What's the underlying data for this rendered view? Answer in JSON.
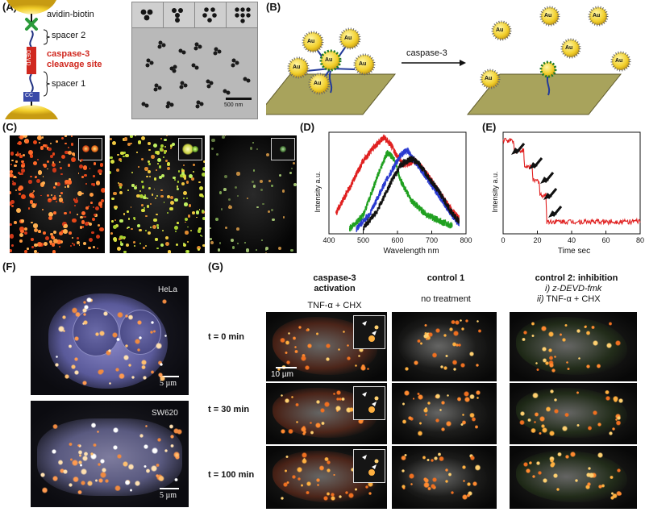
{
  "panel_letters": [
    "(A)",
    "(B)",
    "(C)",
    "(D)",
    "(E)",
    "(F)",
    "(G)"
  ],
  "panelA": {
    "labels": {
      "avidin_biotin": "avidin-biotin",
      "spacer2": "spacer 2",
      "caspase_line1": "caspase-3",
      "caspase_line2": "cleavage site",
      "spacer1": "spacer 1",
      "devd": "DEVD",
      "cc": "CC"
    },
    "scale_bar": "500 nm",
    "colors": {
      "cleavage": "#d0281f",
      "linker": "#3a57a8",
      "gold": "#f2cf2a"
    }
  },
  "panelB": {
    "arrow_label": "caspase-3",
    "np_label": "Au"
  },
  "panelD": {
    "chart_data": {
      "type": "line",
      "xlabel": "Wavelength nm",
      "ylabel": "Intensity a.u.",
      "xlim": [
        400,
        800
      ],
      "x_ticks": [
        400,
        500,
        600,
        700,
        800
      ],
      "series": [
        {
          "color": "#e02020",
          "x": [
            420,
            460,
            500,
            530,
            560,
            580,
            600,
            620,
            650,
            680,
            720,
            760,
            780
          ],
          "values": [
            0.2,
            0.45,
            0.72,
            0.85,
            0.95,
            0.88,
            0.76,
            0.68,
            0.72,
            0.62,
            0.42,
            0.22,
            0.15
          ]
        },
        {
          "color": "#20a020",
          "x": [
            460,
            500,
            540,
            570,
            590,
            610,
            640,
            680,
            720,
            760
          ],
          "values": [
            0.05,
            0.18,
            0.55,
            0.8,
            0.74,
            0.52,
            0.33,
            0.2,
            0.13,
            0.08
          ]
        },
        {
          "color": "#2a3ad0",
          "x": [
            480,
            520,
            560,
            590,
            610,
            630,
            650,
            680,
            720,
            760,
            780
          ],
          "values": [
            0.05,
            0.2,
            0.48,
            0.66,
            0.78,
            0.82,
            0.72,
            0.58,
            0.38,
            0.18,
            0.1
          ]
        },
        {
          "color": "#111111",
          "x": [
            500,
            540,
            580,
            610,
            640,
            660,
            690,
            720,
            760,
            780
          ],
          "values": [
            0.06,
            0.22,
            0.5,
            0.68,
            0.74,
            0.7,
            0.56,
            0.42,
            0.2,
            0.12
          ]
        }
      ]
    }
  },
  "panelE": {
    "chart_data": {
      "type": "line",
      "xlabel": "Time sec",
      "ylabel": "Intensity a.u.",
      "xlim": [
        0,
        80
      ],
      "x_ticks": [
        0,
        20,
        40,
        60,
        80
      ],
      "series": [
        {
          "color": "#e02020",
          "x": [
            0,
            6,
            6.5,
            12,
            12.5,
            17,
            17.5,
            21,
            21.5,
            25,
            25.5,
            80
          ],
          "values": [
            0.92,
            0.92,
            0.82,
            0.82,
            0.66,
            0.66,
            0.52,
            0.52,
            0.38,
            0.38,
            0.12,
            0.12
          ]
        }
      ]
    }
  },
  "panelF": {
    "cell1_label": "HeLa",
    "cell2_label": "SW620",
    "scale_bar": "5 µm"
  },
  "panelG": {
    "col1_title_line1": "caspase-3",
    "col1_title_line2": "activation",
    "col1_treatment": "TNF-α + CHX",
    "col2_title": "control 1",
    "col2_treatment": "no treatment",
    "col3_title": "control 2: inhibition",
    "col3_treat1_prefix": "i)",
    "col3_treat1": "z-DEVD-fmk",
    "col3_treat2_prefix": "ii)",
    "col3_treat2": "TNF-α + CHX",
    "times": [
      "t = 0 min",
      "t = 30 min",
      "t = 100 min"
    ],
    "scale_bar": "10 µm"
  }
}
